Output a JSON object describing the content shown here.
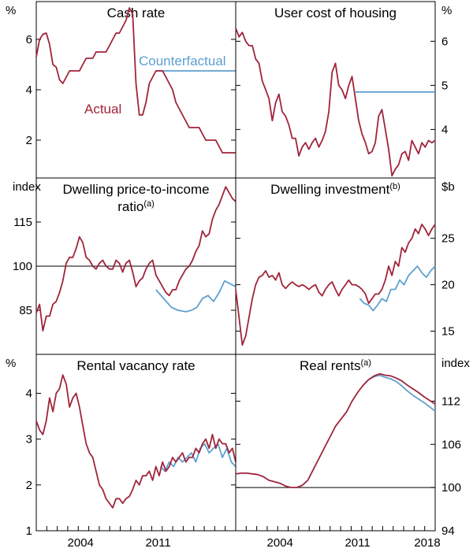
{
  "colors": {
    "actual": "#a0243a",
    "counterfactual": "#5ea0d0",
    "axis": "#000000"
  },
  "chart_data": [
    {
      "type": "line",
      "title": "Cash rate",
      "unit_left": "%",
      "unit_right": "",
      "ylim": [
        0.5,
        7.5
      ],
      "xlim": [
        2000,
        2018
      ],
      "yticks_left": [
        "2",
        "4",
        "6"
      ],
      "yticks_right": [],
      "annotations": {
        "counterfactual": "Counterfactual",
        "actual": "Actual"
      },
      "series": [
        {
          "name": "Actual",
          "x": [
            2000,
            2000.3,
            2000.6,
            2000.9,
            2001.2,
            2001.5,
            2001.8,
            2002.1,
            2002.4,
            2002.7,
            2003,
            2003.3,
            2003.6,
            2003.9,
            2004.2,
            2004.5,
            2004.8,
            2005.1,
            2005.4,
            2005.7,
            2006,
            2006.3,
            2006.6,
            2006.9,
            2007.2,
            2007.5,
            2007.8,
            2008.1,
            2008.4,
            2008.7,
            2009,
            2009.3,
            2009.6,
            2009.9,
            2010.2,
            2010.5,
            2010.8,
            2011.1,
            2011.4,
            2011.7,
            2012,
            2012.3,
            2012.6,
            2012.9,
            2013.2,
            2013.5,
            2013.8,
            2014.1,
            2014.4,
            2014.7,
            2015,
            2015.3,
            2015.6,
            2015.9,
            2016.2,
            2016.5,
            2016.8,
            2017.1,
            2017.4,
            2017.7,
            2018
          ],
          "values": [
            5.3,
            6.0,
            6.2,
            6.25,
            5.8,
            5.0,
            4.9,
            4.4,
            4.25,
            4.5,
            4.75,
            4.75,
            4.75,
            4.75,
            5.0,
            5.25,
            5.25,
            5.25,
            5.5,
            5.5,
            5.5,
            5.5,
            5.75,
            6.0,
            6.25,
            6.25,
            6.5,
            6.75,
            7.25,
            7.0,
            4.25,
            3.0,
            3.0,
            3.5,
            4.25,
            4.5,
            4.75,
            4.75,
            4.75,
            4.5,
            4.25,
            4.0,
            3.5,
            3.25,
            3.0,
            2.75,
            2.5,
            2.5,
            2.5,
            2.5,
            2.25,
            2.0,
            2.0,
            2.0,
            2.0,
            1.75,
            1.5,
            1.5,
            1.5,
            1.5,
            1.5
          ]
        },
        {
          "name": "Counterfactual",
          "x": [
            2010.8,
            2018
          ],
          "values": [
            4.75,
            4.75
          ]
        }
      ]
    },
    {
      "type": "line",
      "title": "User cost of housing",
      "unit_left": "",
      "unit_right": "%",
      "ylim": [
        2.9,
        6.9
      ],
      "xlim": [
        2000,
        2018
      ],
      "yticks_left": [],
      "yticks_right": [
        "4",
        "5",
        "6"
      ],
      "series": [
        {
          "name": "Actual",
          "x": [
            2000,
            2000.3,
            2000.6,
            2000.9,
            2001.2,
            2001.5,
            2001.8,
            2002.1,
            2002.4,
            2002.7,
            2003,
            2003.3,
            2003.6,
            2003.9,
            2004.2,
            2004.5,
            2004.8,
            2005.1,
            2005.4,
            2005.7,
            2006,
            2006.3,
            2006.6,
            2006.9,
            2007.2,
            2007.5,
            2007.8,
            2008.1,
            2008.4,
            2008.7,
            2009,
            2009.3,
            2009.6,
            2009.9,
            2010.2,
            2010.5,
            2010.8,
            2011.1,
            2011.4,
            2011.7,
            2012,
            2012.3,
            2012.6,
            2012.9,
            2013.2,
            2013.5,
            2013.8,
            2014.1,
            2014.4,
            2014.7,
            2015,
            2015.3,
            2015.6,
            2015.9,
            2016.2,
            2016.5,
            2016.8,
            2017.1,
            2017.4,
            2017.7,
            2018
          ],
          "values": [
            6.3,
            6.1,
            6.2,
            6.0,
            5.9,
            5.9,
            5.6,
            5.5,
            5.1,
            4.9,
            4.7,
            4.2,
            4.6,
            4.8,
            4.4,
            4.3,
            4.1,
            3.8,
            3.8,
            3.4,
            3.6,
            3.7,
            3.55,
            3.7,
            3.8,
            3.6,
            3.75,
            3.95,
            4.4,
            5.3,
            5.5,
            5.0,
            4.9,
            4.7,
            5.0,
            5.2,
            4.7,
            4.2,
            3.9,
            3.7,
            3.45,
            3.5,
            3.7,
            4.3,
            4.45,
            4.0,
            3.55,
            2.95,
            3.1,
            3.2,
            3.45,
            3.5,
            3.3,
            3.75,
            3.6,
            3.45,
            3.7,
            3.6,
            3.75,
            3.7,
            3.75
          ]
        },
        {
          "name": "Counterfactual",
          "x": [
            2010.8,
            2018
          ],
          "values": [
            4.85,
            4.85
          ]
        }
      ]
    },
    {
      "type": "line",
      "title": "Dwelling price-to-income",
      "title_line2": "ratio",
      "title_sup": "(a)",
      "unit_left": "index",
      "unit_right": "",
      "ylim": [
        70,
        130
      ],
      "xlim": [
        2000,
        2018
      ],
      "yticks_left": [
        "85",
        "100",
        "115"
      ],
      "yticks_right": [],
      "baseline": 100,
      "series": [
        {
          "name": "Actual",
          "x": [
            2000,
            2000.3,
            2000.6,
            2000.9,
            2001.2,
            2001.5,
            2001.8,
            2002.1,
            2002.4,
            2002.7,
            2003,
            2003.3,
            2003.6,
            2003.9,
            2004.2,
            2004.5,
            2004.8,
            2005.1,
            2005.4,
            2005.7,
            2006,
            2006.3,
            2006.6,
            2006.9,
            2007.2,
            2007.5,
            2007.8,
            2008.1,
            2008.4,
            2008.7,
            2009,
            2009.3,
            2009.6,
            2009.9,
            2010.2,
            2010.5,
            2010.8,
            2011.1,
            2011.4,
            2011.7,
            2012,
            2012.3,
            2012.6,
            2012.9,
            2013.2,
            2013.5,
            2013.8,
            2014.1,
            2014.4,
            2014.7,
            2015,
            2015.3,
            2015.6,
            2015.9,
            2016.2,
            2016.5,
            2016.8,
            2017.1,
            2017.4,
            2017.7,
            2018
          ],
          "values": [
            84,
            87,
            78,
            83,
            83,
            87,
            88,
            91,
            95,
            101,
            103,
            103,
            106,
            110,
            108,
            103,
            102,
            100,
            99,
            101,
            102,
            100,
            99,
            99,
            102,
            101,
            98,
            101,
            102,
            98,
            93,
            95,
            96,
            99,
            101,
            102,
            97,
            95,
            93,
            91,
            90,
            92,
            92,
            95,
            97,
            99,
            100,
            102,
            105,
            107,
            112,
            110,
            111,
            116,
            119,
            121,
            124,
            127,
            125,
            123,
            122
          ]
        },
        {
          "name": "Counterfactual",
          "x": [
            2010.8,
            2011.5,
            2012.2,
            2012.8,
            2013.5,
            2014,
            2014.5,
            2015,
            2015.5,
            2016,
            2016.5,
            2017,
            2017.5,
            2018
          ],
          "values": [
            92,
            89,
            86,
            85,
            84.5,
            85,
            86,
            89,
            90,
            88,
            91,
            95,
            94,
            93
          ]
        }
      ]
    },
    {
      "type": "line",
      "title": "Dwelling investment",
      "title_sup": "(b)",
      "unit_left": "",
      "unit_right": "$b",
      "ylim": [
        12.5,
        31.5
      ],
      "xlim": [
        2000,
        2018
      ],
      "yticks_left": [],
      "yticks_right": [
        "15",
        "20",
        "25"
      ],
      "series": [
        {
          "name": "Actual",
          "x": [
            2000,
            2000.3,
            2000.6,
            2000.9,
            2001.2,
            2001.5,
            2001.8,
            2002.1,
            2002.4,
            2002.7,
            2003,
            2003.3,
            2003.6,
            2003.9,
            2004.2,
            2004.5,
            2004.8,
            2005.1,
            2005.4,
            2005.7,
            2006,
            2006.3,
            2006.6,
            2006.9,
            2007.2,
            2007.5,
            2007.8,
            2008.1,
            2008.4,
            2008.7,
            2009,
            2009.3,
            2009.6,
            2009.9,
            2010.2,
            2010.5,
            2010.8,
            2011.1,
            2011.4,
            2011.7,
            2012,
            2012.3,
            2012.6,
            2012.9,
            2013.2,
            2013.5,
            2013.8,
            2014.1,
            2014.4,
            2014.7,
            2015,
            2015.3,
            2015.6,
            2015.9,
            2016.2,
            2016.5,
            2016.8,
            2017.1,
            2017.4,
            2017.7,
            2018
          ],
          "values": [
            19.5,
            16.5,
            13.5,
            14.5,
            16.5,
            18.5,
            20.0,
            20.8,
            21.0,
            21.5,
            20.8,
            21.0,
            20.5,
            21.3,
            20.0,
            19.6,
            20.0,
            20.3,
            20.0,
            19.8,
            20.0,
            19.8,
            19.5,
            19.8,
            20.0,
            19.2,
            18.8,
            19.5,
            20.0,
            20.3,
            19.5,
            18.8,
            19.5,
            20.0,
            20.5,
            20.0,
            20.0,
            19.8,
            19.5,
            19.0,
            18.0,
            18.5,
            19.0,
            19.0,
            19.5,
            20.5,
            22.0,
            21.0,
            22.5,
            22.0,
            24.0,
            23.5,
            24.5,
            25.0,
            26.0,
            25.5,
            26.5,
            26.0,
            25.3,
            26.0,
            26.5
          ]
        },
        {
          "name": "Counterfactual",
          "x": [
            2011.2,
            2011.6,
            2012,
            2012.4,
            2012.8,
            2013.2,
            2013.6,
            2014,
            2014.4,
            2014.8,
            2015.2,
            2015.6,
            2016,
            2016.4,
            2016.8,
            2017.2,
            2017.6,
            2018
          ],
          "values": [
            18.5,
            18.0,
            17.8,
            17.2,
            17.8,
            18.5,
            18.2,
            19.5,
            19.5,
            20.5,
            20.0,
            21.0,
            21.5,
            22.0,
            21.3,
            20.8,
            21.5,
            22.0
          ]
        }
      ]
    },
    {
      "type": "line",
      "title": "Rental vacancy rate",
      "unit_left": "%",
      "unit_right": "",
      "ylim": [
        1,
        4.85
      ],
      "xlim": [
        2000,
        2018
      ],
      "yticks_left": [
        "1",
        "2",
        "3",
        "4"
      ],
      "yticks_right": [],
      "xticks": [
        "2004",
        "2011"
      ],
      "series": [
        {
          "name": "Actual",
          "x": [
            2000,
            2000.3,
            2000.6,
            2000.9,
            2001.2,
            2001.5,
            2001.8,
            2002.1,
            2002.4,
            2002.7,
            2003,
            2003.3,
            2003.6,
            2003.9,
            2004.2,
            2004.5,
            2004.8,
            2005.1,
            2005.4,
            2005.7,
            2006,
            2006.3,
            2006.6,
            2006.9,
            2007.2,
            2007.5,
            2007.8,
            2008.1,
            2008.4,
            2008.7,
            2009,
            2009.3,
            2009.6,
            2009.9,
            2010.2,
            2010.5,
            2010.8,
            2011.1,
            2011.4,
            2011.7,
            2012,
            2012.3,
            2012.6,
            2012.9,
            2013.2,
            2013.5,
            2013.8,
            2014.1,
            2014.4,
            2014.7,
            2015,
            2015.3,
            2015.6,
            2015.9,
            2016.2,
            2016.5,
            2016.8,
            2017.1,
            2017.4,
            2017.7,
            2018
          ],
          "values": [
            3.4,
            3.2,
            3.1,
            3.4,
            3.9,
            3.6,
            4.0,
            4.1,
            4.4,
            4.2,
            3.7,
            3.9,
            4.0,
            3.7,
            3.3,
            2.9,
            2.7,
            2.6,
            2.3,
            2.0,
            1.9,
            1.7,
            1.6,
            1.5,
            1.7,
            1.7,
            1.6,
            1.7,
            1.75,
            1.9,
            2.1,
            2.0,
            2.2,
            2.2,
            2.3,
            2.1,
            2.4,
            2.2,
            2.5,
            2.3,
            2.4,
            2.6,
            2.5,
            2.6,
            2.7,
            2.5,
            2.6,
            2.6,
            2.8,
            2.7,
            2.9,
            3.0,
            2.8,
            3.1,
            2.8,
            3.0,
            2.9,
            2.9,
            2.7,
            2.8,
            2.5
          ]
        },
        {
          "name": "Counterfactual",
          "x": [
            2011.2,
            2011.6,
            2012,
            2012.4,
            2012.8,
            2013.2,
            2013.6,
            2014,
            2014.4,
            2014.8,
            2015.2,
            2015.6,
            2016,
            2016.4,
            2016.8,
            2017.2,
            2017.6,
            2018
          ],
          "values": [
            2.4,
            2.3,
            2.5,
            2.4,
            2.6,
            2.5,
            2.6,
            2.7,
            2.5,
            2.8,
            2.9,
            2.7,
            2.8,
            2.9,
            2.6,
            2.8,
            2.5,
            2.4
          ]
        }
      ]
    },
    {
      "type": "line",
      "title": "Real rents",
      "title_sup": "(a)",
      "unit_left": "",
      "unit_right": "index",
      "ylim": [
        94,
        118.5
      ],
      "xlim": [
        2000,
        2018
      ],
      "yticks_left": [],
      "yticks_right": [
        "94",
        "100",
        "106",
        "112"
      ],
      "xticks": [
        "2004",
        "2011",
        "2018"
      ],
      "baseline": 100,
      "series": [
        {
          "name": "Actual",
          "x": [
            2000,
            2000.5,
            2001,
            2001.5,
            2002,
            2002.5,
            2003,
            2003.5,
            2004,
            2004.5,
            2005,
            2005.5,
            2006,
            2006.5,
            2007,
            2007.5,
            2008,
            2008.5,
            2009,
            2009.5,
            2010,
            2010.5,
            2011,
            2011.5,
            2012,
            2012.5,
            2013,
            2013.5,
            2014,
            2014.5,
            2015,
            2015.5,
            2016,
            2016.5,
            2017,
            2017.5,
            2018
          ],
          "values": [
            101.9,
            102.0,
            102.0,
            101.9,
            101.8,
            101.5,
            101.0,
            100.8,
            100.6,
            100.2,
            100.0,
            100.0,
            100.3,
            101.0,
            102.5,
            104.0,
            105.5,
            107.0,
            108.5,
            109.5,
            110.5,
            112.0,
            113.2,
            114.2,
            115.0,
            115.5,
            115.8,
            115.6,
            115.5,
            115.2,
            114.8,
            114.2,
            113.7,
            113.2,
            112.6,
            112.1,
            111.6
          ]
        },
        {
          "name": "Counterfactual",
          "x": [
            2011.5,
            2012,
            2012.5,
            2013,
            2013.5,
            2014,
            2014.5,
            2015,
            2015.5,
            2016,
            2016.5,
            2017,
            2017.5,
            2018
          ],
          "values": [
            114.2,
            115.0,
            115.4,
            115.6,
            115.3,
            115.1,
            114.7,
            114.1,
            113.4,
            112.8,
            112.3,
            111.8,
            111.2,
            110.6
          ]
        }
      ]
    }
  ]
}
